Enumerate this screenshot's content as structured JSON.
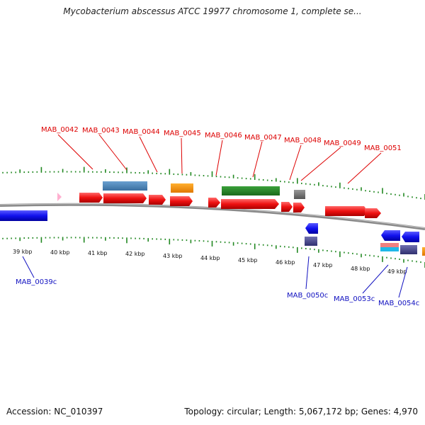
{
  "title": "Mycobacterium abscessus ATCC 19977 chromosome 1, complete se...",
  "footer": {
    "accession": "Accession: NC_010397",
    "summary": "Topology: circular; Length: 5,067,172 bp; Genes: 4,970"
  },
  "colors": {
    "forward_gene": "#ee1111",
    "reverse_gene": "#1111ee",
    "backbone": "#808080",
    "tick": "#228822",
    "forward_label": "#dd0000",
    "reverse_label": "#1010c0"
  },
  "kbp_ticks": [
    "39 kbp",
    "40 kbp",
    "41 kbp",
    "42 kbp",
    "43 kbp",
    "44 kbp",
    "45 kbp",
    "46 kbp",
    "47 kbp",
    "48 kbp",
    "49 kbp"
  ],
  "forward_labels": [
    "MAB_0042",
    "MAB_0043",
    "MAB_0044",
    "MAB_0045",
    "MAB_0046",
    "MAB_0047",
    "MAB_0048",
    "MAB_0049",
    "MAB_0051"
  ],
  "reverse_labels": [
    "MAB_0039c",
    "MAB_0050c",
    "MAB_0053c",
    "MAB_0054c"
  ]
}
